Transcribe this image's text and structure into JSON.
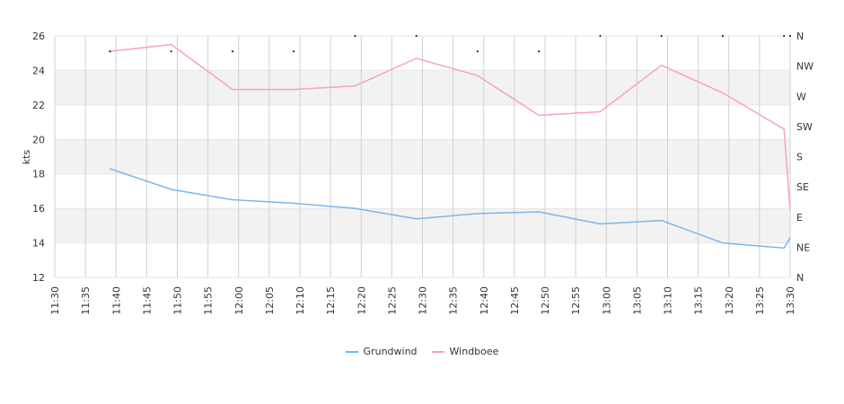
{
  "chart_data": {
    "type": "line",
    "ylabel": "kts",
    "ylim": [
      12,
      26
    ],
    "y_ticks": [
      12,
      14,
      16,
      18,
      20,
      22,
      24,
      26
    ],
    "x_ticks": [
      "11:30",
      "11:35",
      "11:40",
      "11:45",
      "11:50",
      "11:55",
      "12:00",
      "12:05",
      "12:10",
      "12:15",
      "12:20",
      "12:25",
      "12:30",
      "12:35",
      "12:40",
      "12:45",
      "12:50",
      "12:55",
      "13:00",
      "13:05",
      "13:10",
      "13:15",
      "13:20",
      "13:25",
      "13:30"
    ],
    "right_axis_ticks": [
      "N",
      "NW",
      "W",
      "SW",
      "S",
      "SE",
      "E",
      "NE",
      "N"
    ],
    "grid": true,
    "legend_position": "bottom",
    "series": [
      {
        "name": "Grundwind",
        "color": "#7cb5ec",
        "x": [
          "11:39",
          "11:49",
          "11:59",
          "12:09",
          "12:19",
          "12:29",
          "12:39",
          "12:49",
          "12:59",
          "13:09",
          "13:19",
          "13:29",
          "13:30"
        ],
        "values": [
          18.3,
          17.1,
          16.5,
          16.3,
          16.0,
          15.4,
          15.7,
          15.8,
          15.1,
          15.3,
          14.0,
          13.7,
          14.3
        ]
      },
      {
        "name": "Windboee",
        "color": "#f7a1c4",
        "x": [
          "11:39",
          "11:49",
          "11:59",
          "12:09",
          "12:19",
          "12:29",
          "12:39",
          "12:49",
          "12:59",
          "13:09",
          "13:19",
          "13:29",
          "13:30"
        ],
        "values": [
          25.1,
          25.5,
          22.9,
          22.9,
          23.1,
          24.7,
          23.7,
          21.4,
          21.6,
          24.3,
          22.7,
          20.6,
          15.9
        ]
      }
    ],
    "direction_markers": {
      "x": [
        "11:39",
        "11:49",
        "11:59",
        "12:09",
        "12:19",
        "12:29",
        "12:39",
        "12:49",
        "12:59",
        "13:09",
        "13:19",
        "13:29",
        "13:30"
      ],
      "values": [
        25.1,
        25.1,
        25.1,
        25.1,
        26.0,
        26.0,
        25.1,
        25.1,
        26.0,
        26.0,
        26.0,
        26.0,
        26.0
      ]
    }
  }
}
